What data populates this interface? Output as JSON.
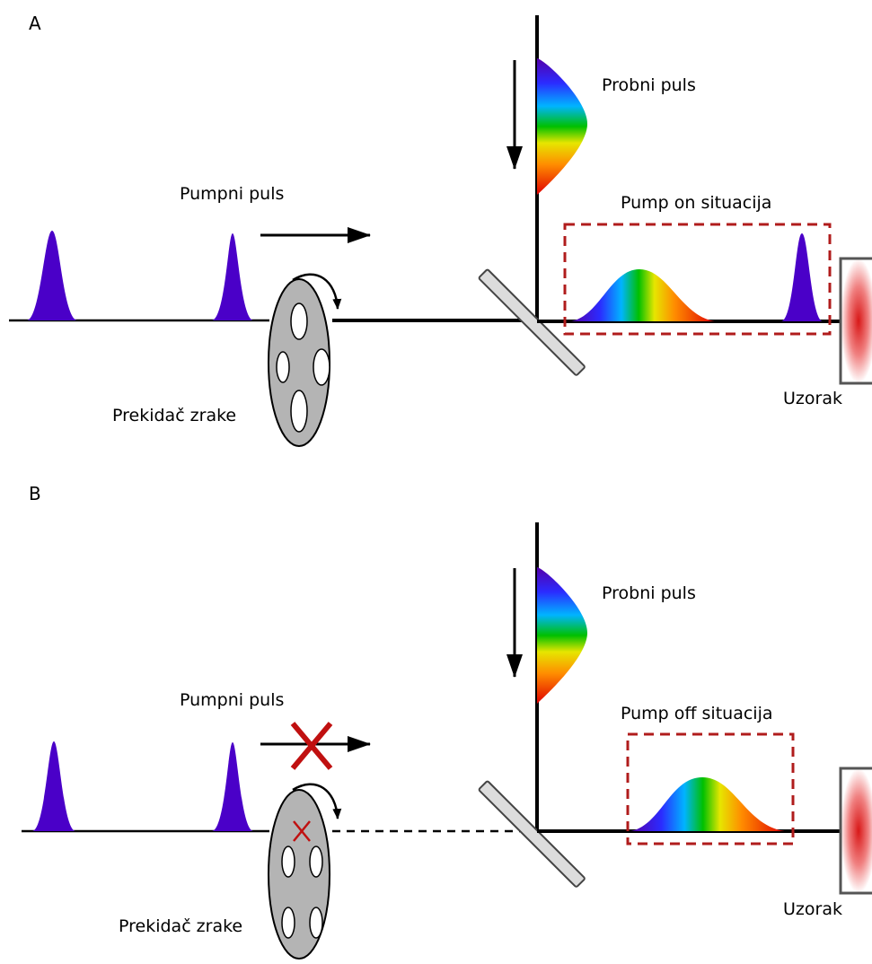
{
  "panels": [
    {
      "letter": "A",
      "pump_label": "Pumpni puls",
      "probe_label": "Probni puls",
      "chopper_label": "Prekidač zrake",
      "sample_label": "Uzorak",
      "situation_label": "Pump on situacija"
    },
    {
      "letter": "B",
      "pump_label": "Pumpni puls",
      "probe_label": "Probni puls",
      "chopper_label": "Prekidač zrake",
      "sample_label": "Uzorak",
      "situation_label": "Pump off situacija"
    }
  ],
  "colors": {
    "pump_pulse": "#4a00c8",
    "highlight_box": "#b01c1c",
    "block_mark": "#c01010",
    "chopper_fill": "#b4b4b4",
    "mirror_fill": "#dcdcdc",
    "sample_core": "#d81818"
  }
}
